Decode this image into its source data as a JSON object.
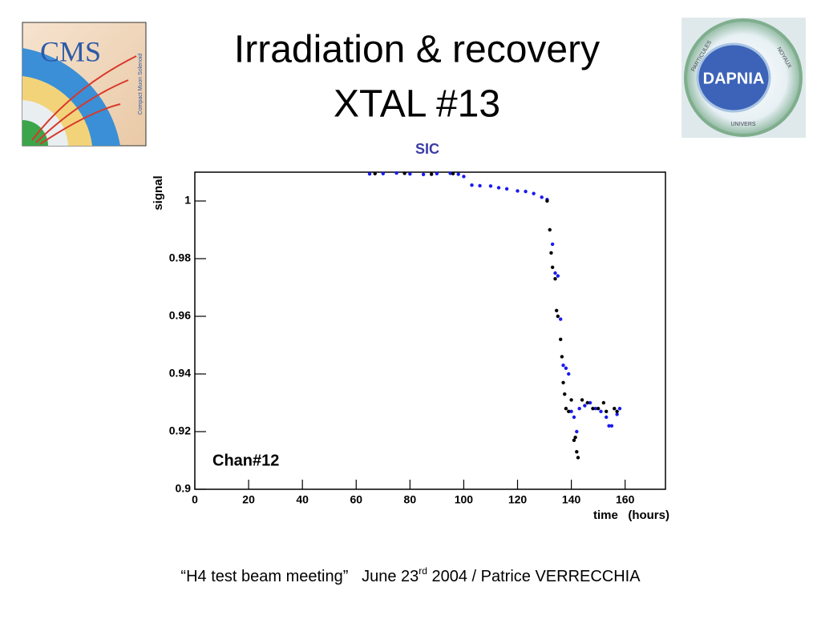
{
  "slide": {
    "title_lines": [
      "Irradiation & recovery",
      "XTAL #13"
    ],
    "footer": [
      "“H4 test beam meeting”   June 23",
      "rd",
      " 2004 / Patrice VERRECCHIA"
    ],
    "logos": {
      "cms": "CMS",
      "cms_sub": "Compact Muon Solenoid",
      "dapnia": "DAPNIA",
      "dapnia_top_left": "PARTICULES",
      "dapnia_top_right": "NOYAUX",
      "dapnia_bottom": "UNIVERS"
    }
  },
  "chart_data": {
    "type": "scatter",
    "title": "SIC",
    "ylabel": "signal",
    "xlabel": "time   (hours)",
    "annotation": "Chan#12",
    "xlim": [
      0,
      175
    ],
    "ylim": [
      0.9,
      1.01
    ],
    "xticks": [
      0,
      20,
      40,
      60,
      80,
      100,
      120,
      140,
      160
    ],
    "yticks": [
      0.9,
      0.92,
      0.94,
      0.96,
      0.98,
      1
    ],
    "series": [
      {
        "color": "#1a1aee",
        "x": [
          65,
          70,
          75,
          80,
          85,
          90,
          95,
          98,
          100,
          103,
          106,
          110,
          113,
          116,
          120,
          123,
          126,
          129,
          131,
          133,
          134,
          135,
          136,
          137,
          138,
          139,
          140,
          141,
          142,
          143,
          145,
          147,
          149,
          151,
          153,
          154,
          155,
          157,
          158
        ],
        "values": [
          1.0094,
          1.0095,
          1.0097,
          1.0094,
          1.0092,
          1.0095,
          1.0096,
          1.0093,
          1.0085,
          1.0055,
          1.0053,
          1.0052,
          1.0046,
          1.0042,
          1.0035,
          1.0033,
          1.0026,
          1.0013,
          1.0005,
          0.985,
          0.975,
          0.974,
          0.959,
          0.943,
          0.942,
          0.94,
          0.927,
          0.925,
          0.92,
          0.928,
          0.929,
          0.93,
          0.928,
          0.927,
          0.925,
          0.922,
          0.922,
          0.926,
          0.928
        ]
      },
      {
        "color": "#000000",
        "x": [
          67,
          78,
          88,
          96,
          131,
          132,
          132.5,
          133,
          134,
          134.5,
          135,
          136,
          136.5,
          137,
          137.5,
          138,
          139,
          140,
          141,
          141.5,
          142,
          142.5,
          144,
          146,
          148,
          150,
          152,
          153,
          156,
          157
        ],
        "values": [
          1.0095,
          1.0096,
          1.0093,
          1.0095,
          1.0,
          0.99,
          0.982,
          0.977,
          0.973,
          0.962,
          0.96,
          0.952,
          0.946,
          0.937,
          0.933,
          0.928,
          0.927,
          0.931,
          0.917,
          0.918,
          0.913,
          0.911,
          0.931,
          0.93,
          0.928,
          0.928,
          0.93,
          0.927,
          0.928,
          0.927
        ]
      }
    ]
  }
}
